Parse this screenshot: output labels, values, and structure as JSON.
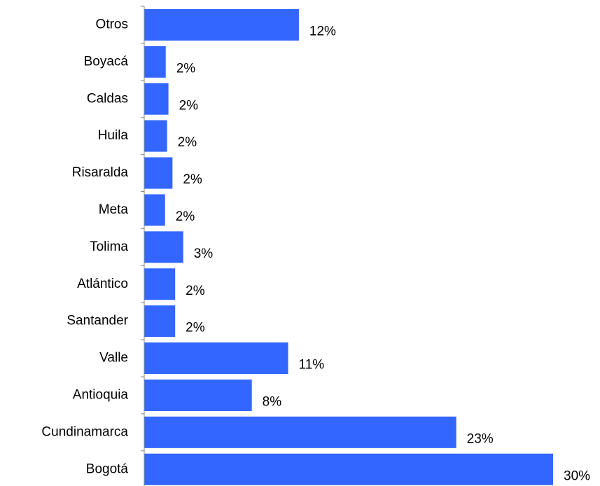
{
  "chart_data": {
    "type": "bar",
    "orientation": "horizontal",
    "categories": [
      "Otros",
      "Boyacá",
      "Caldas",
      "Huila",
      "Risaralda",
      "Meta",
      "Tolima",
      "Atlántico",
      "Santander",
      "Valle",
      "Antioquia",
      "Cundinamarca",
      "Bogotá"
    ],
    "values": [
      11.5,
      1.6,
      1.8,
      1.7,
      2.1,
      1.55,
      2.9,
      2.3,
      2.3,
      10.7,
      8.0,
      23.2,
      30.4
    ],
    "value_labels": [
      "12%",
      "2%",
      "2%",
      "2%",
      "2%",
      "2%",
      "3%",
      "2%",
      "2%",
      "11%",
      "8%",
      "23%",
      "30%"
    ],
    "color": "#3366ff",
    "xlim": [
      0,
      30.4
    ]
  }
}
